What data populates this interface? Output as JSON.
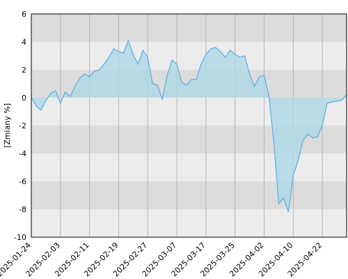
{
  "chart_data": {
    "type": "area",
    "y_label": "[Zmiany %]",
    "categories": [
      "2025-01-24",
      null,
      null,
      null,
      null,
      null,
      "2025-02-03",
      null,
      null,
      null,
      null,
      null,
      "2025-02-11",
      null,
      null,
      null,
      null,
      null,
      "2025-02-19",
      null,
      null,
      null,
      null,
      null,
      "2025-02-27",
      null,
      null,
      null,
      null,
      null,
      "2025-03-07",
      null,
      null,
      null,
      null,
      null,
      "2025-03-17",
      null,
      null,
      null,
      null,
      null,
      "2025-03-25",
      null,
      null,
      null,
      null,
      null,
      "2025-04-02",
      null,
      null,
      null,
      null,
      null,
      "2025-04-10",
      null,
      null,
      null,
      null,
      null,
      "2025-04-22",
      null,
      null,
      null,
      null,
      null
    ],
    "series": [
      {
        "color": "#5aabe8",
        "fill": "#add8e6",
        "values": [
          0,
          -0.6,
          -0.9,
          -0.2,
          0.3,
          0.5,
          -0.4,
          0.4,
          0.1,
          0.8,
          1.4,
          1.7,
          1.5,
          1.9,
          2.0,
          2.4,
          2.9,
          3.5,
          3.3,
          3.2,
          4.1,
          3.1,
          2.4,
          3.4,
          2.9,
          1.0,
          0.9,
          -0.1,
          1.6,
          2.7,
          2.4,
          1.1,
          0.9,
          1.3,
          1.3,
          2.4,
          3.1,
          3.5,
          3.6,
          3.3,
          2.9,
          3.4,
          3.1,
          2.9,
          3.0,
          1.7,
          0.8,
          1.5,
          1.6,
          0.1,
          -3.2,
          -7.6,
          -7.2,
          -8.2,
          -5.6,
          -4.5,
          -3.1,
          -2.6,
          -2.9,
          -2.8,
          -2.0,
          -0.4,
          -0.3,
          -0.25,
          -0.2,
          0.25
        ]
      }
    ],
    "ylim": [
      -10,
      6
    ],
    "yticks": [
      -10,
      -8,
      -6,
      -4,
      -2,
      0,
      2,
      4,
      6
    ],
    "band_colors": [
      "#ececec",
      "#dcdcdc"
    ]
  }
}
